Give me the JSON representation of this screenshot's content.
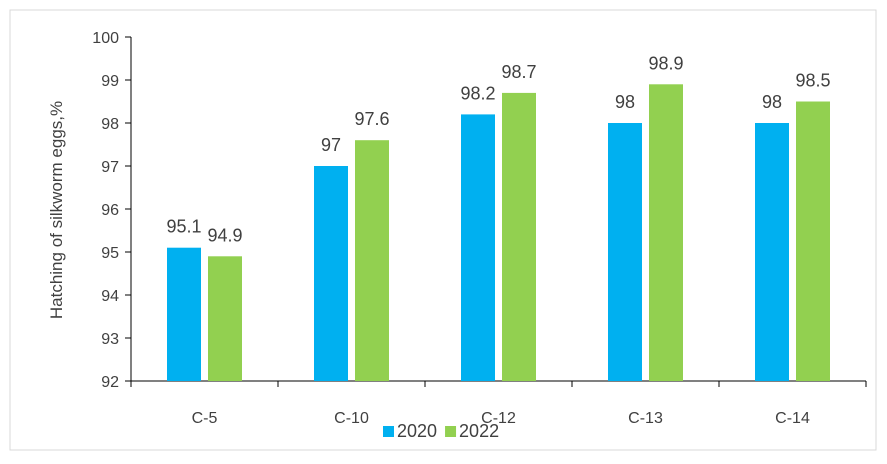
{
  "chart_data": {
    "type": "bar",
    "title": "",
    "xlabel": "",
    "ylabel": "Hatching of silkworm eggs,%",
    "ylim": [
      92,
      100
    ],
    "yticks": [
      "92",
      "93",
      "94",
      "95",
      "96",
      "97",
      "98",
      "99",
      "100"
    ],
    "grid": false,
    "legend_position": "bottom",
    "categories": [
      "C-5",
      "C-10",
      "C-12",
      "C-13",
      "C-14"
    ],
    "series": [
      {
        "name": "2020",
        "color": "#00b0f0",
        "values": [
          95.1,
          97,
          98.2,
          98,
          98
        ],
        "labels": [
          "95.1",
          "97",
          "98.2",
          "98",
          "98"
        ]
      },
      {
        "name": "2022",
        "color": "#92d050",
        "values": [
          94.9,
          97.6,
          98.7,
          98.9,
          98.5
        ],
        "labels": [
          "94.9",
          "97.6",
          "98.7",
          "98.9",
          "98.5"
        ]
      }
    ]
  }
}
